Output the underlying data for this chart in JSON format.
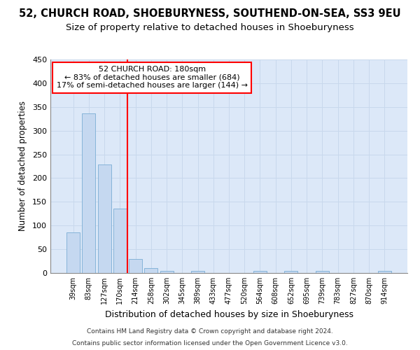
{
  "title": "52, CHURCH ROAD, SHOEBURYNESS, SOUTHEND-ON-SEA, SS3 9EU",
  "subtitle": "Size of property relative to detached houses in Shoeburyness",
  "xlabel": "Distribution of detached houses by size in Shoeburyness",
  "ylabel": "Number of detached properties",
  "footnote1": "Contains HM Land Registry data © Crown copyright and database right 2024.",
  "footnote2": "Contains public sector information licensed under the Open Government Licence v3.0.",
  "bar_labels": [
    "39sqm",
    "83sqm",
    "127sqm",
    "170sqm",
    "214sqm",
    "258sqm",
    "302sqm",
    "345sqm",
    "389sqm",
    "433sqm",
    "477sqm",
    "520sqm",
    "564sqm",
    "608sqm",
    "652sqm",
    "695sqm",
    "739sqm",
    "783sqm",
    "827sqm",
    "870sqm",
    "914sqm"
  ],
  "bar_values": [
    85,
    336,
    229,
    136,
    30,
    11,
    5,
    0,
    5,
    0,
    0,
    0,
    4,
    0,
    4,
    0,
    4,
    0,
    0,
    0,
    4
  ],
  "bar_color": "#c5d8f0",
  "bar_edge_color": "#7aadd4",
  "vline_color": "red",
  "ylim": [
    0,
    450
  ],
  "yticks": [
    0,
    50,
    100,
    150,
    200,
    250,
    300,
    350,
    400,
    450
  ],
  "annotation_title": "52 CHURCH ROAD: 180sqm",
  "annotation_line1": "← 83% of detached houses are smaller (684)",
  "annotation_line2": "17% of semi-detached houses are larger (144) →",
  "annotation_box_color": "red",
  "title_fontsize": 10.5,
  "subtitle_fontsize": 9.5,
  "grid_color": "#c8d8ec",
  "background_color": "#dce8f8"
}
